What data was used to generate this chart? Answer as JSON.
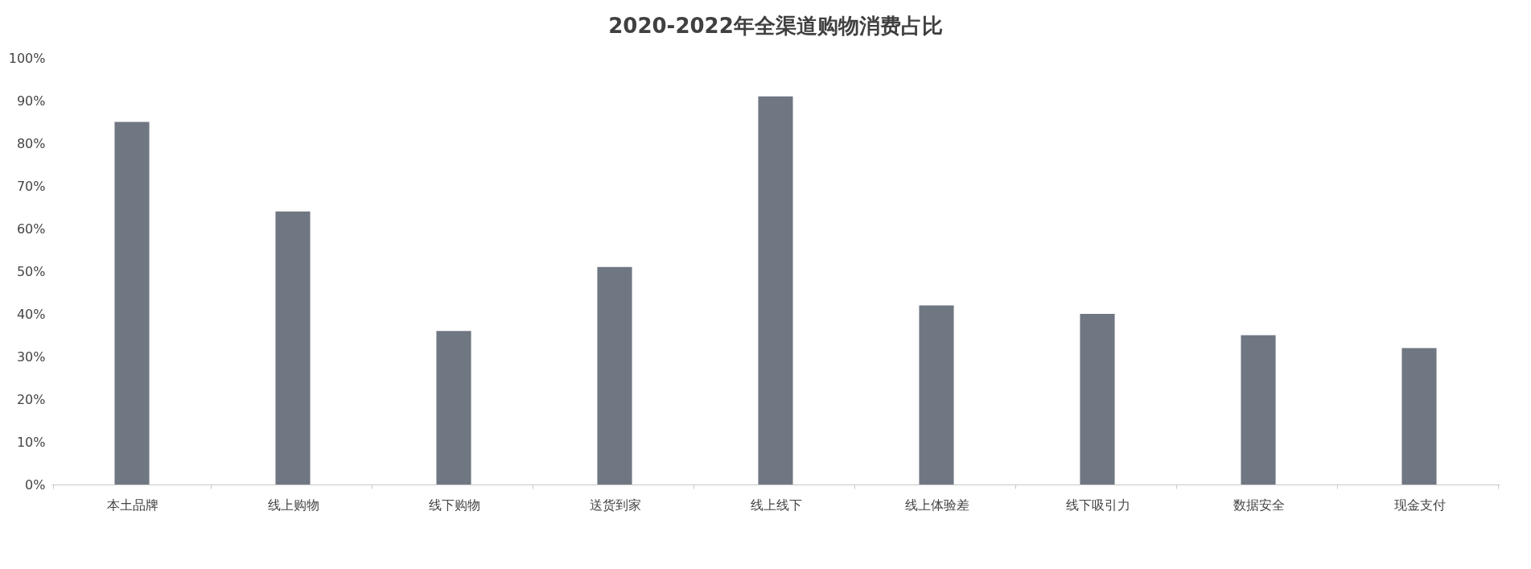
{
  "chart_data": {
    "type": "bar",
    "title": "2020-2022年全渠道购物消费占比",
    "categories": [
      "本土品牌",
      "线上购物",
      "线下购物",
      "送货到家",
      "线上线下",
      "线上体验差",
      "线下吸引力",
      "数据安全",
      "现金支付"
    ],
    "values": [
      85,
      64,
      36,
      51,
      91,
      42,
      40,
      35,
      32
    ],
    "color": "#6f7782",
    "ylim": [
      0,
      100
    ],
    "yticks": [
      {
        "value": 0,
        "label": "0%"
      },
      {
        "value": 10,
        "label": "10%"
      },
      {
        "value": 20,
        "label": "20%"
      },
      {
        "value": 30,
        "label": "30%"
      },
      {
        "value": 40,
        "label": "40%"
      },
      {
        "value": 50,
        "label": "50%"
      },
      {
        "value": 60,
        "label": "60%"
      },
      {
        "value": 70,
        "label": "70%"
      },
      {
        "value": 80,
        "label": "80%"
      },
      {
        "value": 90,
        "label": "90%"
      },
      {
        "value": 100,
        "label": "100%"
      }
    ],
    "grid": false
  }
}
